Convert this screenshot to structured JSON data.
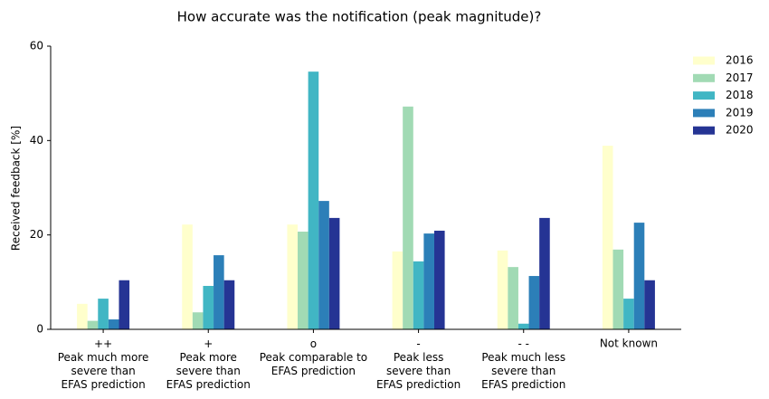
{
  "chart_data": {
    "type": "bar",
    "title": "How accurate was the notification (peak magnitude)?",
    "y_label": "Received feedback [%]",
    "categories": [
      "++\nPeak much more\nsevere than\nEFAS prediction",
      "+\nPeak more\nsevere than\nEFAS prediction",
      "o\nPeak comparable to\nEFAS prediction",
      "-\nPeak less\nsevere than\nEFAS prediction",
      "- -\nPeak much less\nsevere than\nEFAS prediction",
      "Not known"
    ],
    "series": [
      {
        "name": "2016",
        "color": "#ffffcc",
        "values": [
          5.4,
          22.2,
          22.2,
          16.5,
          16.7,
          38.9
        ]
      },
      {
        "name": "2017",
        "color": "#a1dab4",
        "values": [
          1.8,
          3.6,
          20.7,
          47.2,
          13.2,
          16.9
        ]
      },
      {
        "name": "2018",
        "color": "#41b6c4",
        "values": [
          6.5,
          9.2,
          54.6,
          14.4,
          1.2,
          6.5
        ]
      },
      {
        "name": "2019",
        "color": "#2c7fb8",
        "values": [
          2.1,
          15.7,
          27.2,
          20.3,
          11.3,
          22.6
        ]
      },
      {
        "name": "2020",
        "color": "#253494",
        "values": [
          10.4,
          10.4,
          23.6,
          20.9,
          23.6,
          10.4
        ]
      }
    ],
    "ylim": [
      0,
      60
    ],
    "yticks": [
      0,
      20,
      40,
      60
    ],
    "grid": false,
    "legend": "upper right"
  }
}
